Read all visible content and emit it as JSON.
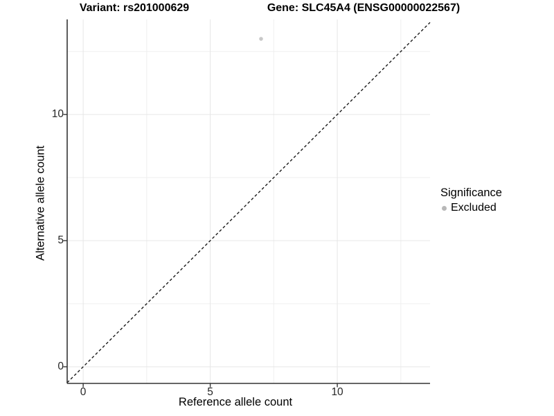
{
  "chart_data": {
    "type": "scatter",
    "title_left": "Variant: rs201000629",
    "title_right": "Gene: SLC45A4 (ENSG00000022567)",
    "xlabel": "Reference allele count",
    "ylabel": "Alternative allele count",
    "xlim": [
      -0.63,
      13.65
    ],
    "ylim": [
      -0.66,
      13.77
    ],
    "x_major_ticks": [
      0,
      5,
      10
    ],
    "y_major_ticks": [
      0,
      5,
      10
    ],
    "x_minor_ticks": [
      2.5,
      7.5,
      12.5
    ],
    "y_minor_ticks": [
      2.5,
      7.5,
      12.5
    ],
    "grid": true,
    "points": [
      {
        "x": 7,
        "y": 13,
        "significance": "Excluded"
      }
    ],
    "identity_line": {
      "slope": 1,
      "intercept": 0,
      "style": "dashed"
    },
    "legend": {
      "title": "Significance",
      "position": "right",
      "items": [
        {
          "label": "Excluded",
          "color": "#b8b8b8"
        }
      ]
    },
    "colors": {
      "background": "#ffffff",
      "grid_major": "#e6e6e6",
      "grid_minor": "#efefef",
      "axis_line": "#333333",
      "tick_mark": "#333333",
      "tick_label": "#262626",
      "title": "#000000",
      "point": "#c8c8c8",
      "identity_line": "#1a1a1a"
    }
  }
}
